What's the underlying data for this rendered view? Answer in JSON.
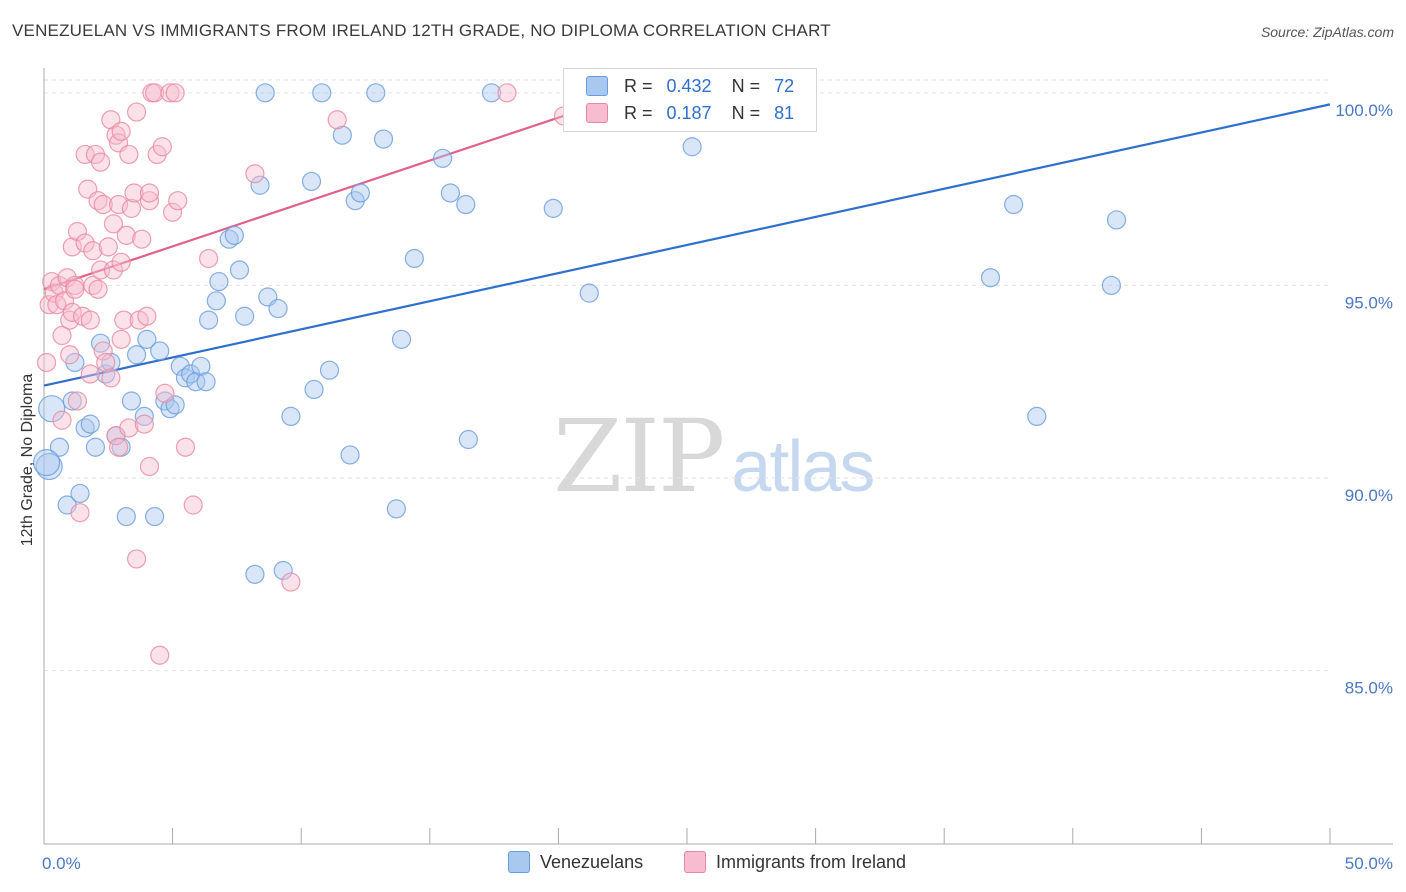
{
  "header": {
    "title": "VENEZUELAN VS IMMIGRANTS FROM IRELAND 12TH GRADE, NO DIPLOMA CORRELATION CHART",
    "source": "Source: ZipAtlas.com"
  },
  "legend": {
    "rows": [
      {
        "r_label": "R =",
        "r_value": "0.432",
        "n_label": "N =",
        "n_value": "72",
        "color": "#a9c8f0"
      },
      {
        "r_label": "R =",
        "r_value": "0.187",
        "n_label": "N =",
        "n_value": "81",
        "color": "#f7bcd0"
      }
    ]
  },
  "bottom_legend": {
    "items": [
      {
        "label": "Venezuelans",
        "color": "#a9c8f0"
      },
      {
        "label": "Immigrants from Ireland",
        "color": "#f7bcd0"
      }
    ]
  },
  "watermark": {
    "zip": "ZIP",
    "atlas": "atlas"
  },
  "chart_data": {
    "type": "scatter",
    "title": "VENEZUELAN VS IMMIGRANTS FROM IRELAND 12TH GRADE, NO DIPLOMA CORRELATION CHART",
    "xlabel": "",
    "ylabel": "12th Grade, No Diploma",
    "xlim": [
      0,
      50
    ],
    "ylim": [
      80.5,
      100.8
    ],
    "x_tick_labels": [
      "0.0%",
      "50.0%"
    ],
    "y_ticks": [
      {
        "value": 100,
        "label": "100.0%"
      },
      {
        "value": 95,
        "label": "95.0%"
      },
      {
        "value": 90,
        "label": "90.0%"
      },
      {
        "value": 85,
        "label": "85.0%"
      }
    ],
    "series": [
      {
        "name": "Venezuelans",
        "color": "#6a9bdc",
        "fill": "#a9c8f0",
        "trend": {
          "x0": 0,
          "y0": 92.4,
          "x1": 50,
          "y1": 99.7,
          "color": "#2f6fce"
        },
        "points": [
          [
            0.2,
            90.3
          ],
          [
            0.3,
            91.8
          ],
          [
            0.6,
            90.8
          ],
          [
            0.9,
            89.3
          ],
          [
            1.1,
            92.0
          ],
          [
            1.2,
            93.0
          ],
          [
            1.4,
            89.6
          ],
          [
            1.6,
            91.3
          ],
          [
            1.8,
            91.4
          ],
          [
            2.0,
            90.8
          ],
          [
            2.2,
            93.5
          ],
          [
            2.4,
            92.7
          ],
          [
            2.6,
            93.0
          ],
          [
            2.8,
            91.1
          ],
          [
            3.0,
            90.8
          ],
          [
            3.2,
            89.0
          ],
          [
            3.4,
            92.0
          ],
          [
            3.6,
            93.2
          ],
          [
            3.9,
            91.6
          ],
          [
            4.0,
            93.6
          ],
          [
            4.3,
            89.0
          ],
          [
            4.5,
            93.3
          ],
          [
            4.7,
            92.0
          ],
          [
            4.9,
            91.8
          ],
          [
            5.1,
            91.9
          ],
          [
            5.3,
            92.9
          ],
          [
            5.5,
            92.6
          ],
          [
            5.7,
            92.7
          ],
          [
            5.9,
            92.5
          ],
          [
            6.1,
            92.9
          ],
          [
            6.3,
            92.5
          ],
          [
            6.4,
            94.1
          ],
          [
            6.7,
            94.6
          ],
          [
            6.8,
            95.1
          ],
          [
            7.2,
            96.2
          ],
          [
            7.4,
            96.3
          ],
          [
            7.6,
            95.4
          ],
          [
            7.8,
            94.2
          ],
          [
            8.2,
            87.5
          ],
          [
            8.4,
            97.6
          ],
          [
            8.6,
            100.0
          ],
          [
            8.7,
            94.7
          ],
          [
            9.1,
            94.4
          ],
          [
            9.3,
            87.6
          ],
          [
            9.6,
            91.6
          ],
          [
            10.4,
            97.7
          ],
          [
            10.5,
            92.3
          ],
          [
            10.8,
            100.0
          ],
          [
            11.1,
            92.8
          ],
          [
            11.6,
            98.9
          ],
          [
            11.9,
            90.6
          ],
          [
            12.1,
            97.2
          ],
          [
            12.3,
            97.4
          ],
          [
            12.9,
            100.0
          ],
          [
            13.2,
            98.8
          ],
          [
            13.7,
            89.2
          ],
          [
            13.9,
            93.6
          ],
          [
            14.4,
            95.7
          ],
          [
            15.5,
            98.3
          ],
          [
            15.8,
            97.4
          ],
          [
            16.4,
            97.1
          ],
          [
            16.5,
            91.0
          ],
          [
            17.4,
            100.0
          ],
          [
            19.8,
            97.0
          ],
          [
            21.2,
            94.8
          ],
          [
            25.2,
            98.6
          ],
          [
            36.8,
            95.2
          ],
          [
            37.7,
            97.1
          ],
          [
            38.6,
            91.6
          ],
          [
            41.5,
            95.0
          ],
          [
            41.7,
            96.7
          ],
          [
            0.1,
            90.4
          ]
        ]
      },
      {
        "name": "Immigrants from Ireland",
        "color": "#e8889e",
        "fill": "#f7bcd0",
        "trend": {
          "x0": 0,
          "y0": 94.9,
          "x1": 20.2,
          "y1": 99.4,
          "color": "#e0608a"
        },
        "points": [
          [
            0.1,
            93.0
          ],
          [
            0.2,
            94.5
          ],
          [
            0.3,
            95.1
          ],
          [
            0.4,
            94.8
          ],
          [
            0.5,
            94.5
          ],
          [
            0.6,
            95.0
          ],
          [
            0.7,
            93.7
          ],
          [
            0.7,
            91.5
          ],
          [
            0.8,
            94.6
          ],
          [
            0.9,
            95.2
          ],
          [
            1.0,
            93.2
          ],
          [
            1.0,
            94.1
          ],
          [
            1.1,
            96.0
          ],
          [
            1.1,
            94.3
          ],
          [
            1.2,
            95.0
          ],
          [
            1.2,
            94.9
          ],
          [
            1.3,
            96.4
          ],
          [
            1.3,
            92.0
          ],
          [
            1.4,
            89.1
          ],
          [
            1.5,
            94.2
          ],
          [
            1.6,
            98.4
          ],
          [
            1.6,
            96.1
          ],
          [
            1.7,
            97.5
          ],
          [
            1.8,
            94.1
          ],
          [
            1.8,
            92.7
          ],
          [
            1.9,
            95.9
          ],
          [
            1.9,
            95.0
          ],
          [
            2.0,
            98.4
          ],
          [
            2.1,
            94.9
          ],
          [
            2.1,
            97.2
          ],
          [
            2.2,
            98.2
          ],
          [
            2.2,
            95.4
          ],
          [
            2.3,
            97.1
          ],
          [
            2.3,
            93.3
          ],
          [
            2.4,
            93.0
          ],
          [
            2.5,
            96.0
          ],
          [
            2.6,
            99.3
          ],
          [
            2.6,
            92.6
          ],
          [
            2.7,
            96.6
          ],
          [
            2.7,
            95.4
          ],
          [
            2.8,
            98.9
          ],
          [
            2.8,
            91.1
          ],
          [
            2.9,
            98.7
          ],
          [
            2.9,
            97.1
          ],
          [
            2.9,
            90.8
          ],
          [
            3.0,
            99.0
          ],
          [
            3.0,
            95.6
          ],
          [
            3.0,
            93.6
          ],
          [
            3.1,
            94.1
          ],
          [
            3.2,
            96.3
          ],
          [
            3.3,
            98.4
          ],
          [
            3.3,
            91.3
          ],
          [
            3.4,
            97.0
          ],
          [
            3.5,
            97.4
          ],
          [
            3.6,
            99.5
          ],
          [
            3.6,
            87.9
          ],
          [
            3.7,
            94.1
          ],
          [
            3.8,
            96.2
          ],
          [
            3.9,
            91.4
          ],
          [
            4.0,
            94.2
          ],
          [
            4.1,
            97.2
          ],
          [
            4.1,
            97.4
          ],
          [
            4.1,
            90.3
          ],
          [
            4.2,
            100.0
          ],
          [
            4.3,
            100.0
          ],
          [
            4.4,
            98.4
          ],
          [
            4.5,
            85.4
          ],
          [
            4.6,
            98.6
          ],
          [
            4.7,
            92.2
          ],
          [
            4.9,
            100.0
          ],
          [
            5.0,
            96.9
          ],
          [
            5.1,
            100.0
          ],
          [
            5.2,
            97.2
          ],
          [
            5.5,
            90.8
          ],
          [
            5.8,
            89.3
          ],
          [
            6.4,
            95.7
          ],
          [
            8.2,
            97.9
          ],
          [
            9.6,
            87.3
          ],
          [
            11.4,
            99.3
          ],
          [
            18.0,
            100.0
          ],
          [
            20.2,
            99.4
          ]
        ]
      }
    ]
  }
}
